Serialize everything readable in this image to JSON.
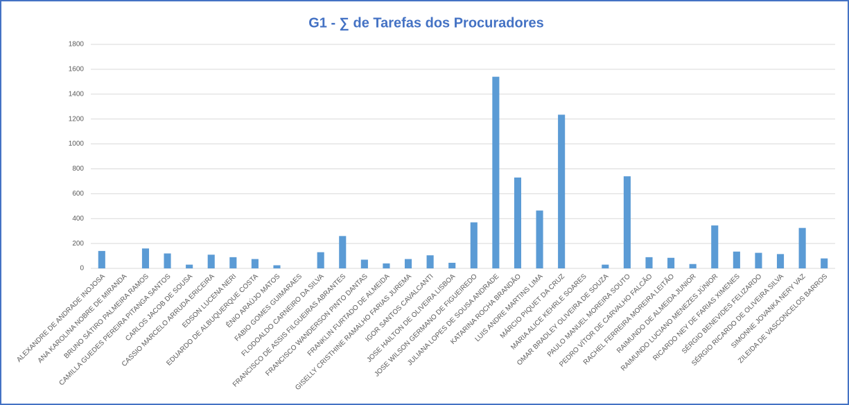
{
  "chart_data": {
    "type": "bar",
    "title": "G1 - ∑ de Tarefas dos Procuradores",
    "categories": [
      "ALEXANDRE DE ANDRADE INOJOSA",
      "ANA KAROLINA NOBRE DE MIRANDA",
      "BRUNO SÁTIRO PALMEIRA RAMOS",
      "CAMILLA GUEDES PEREIRA PITANGA SANTOS",
      "CARLOS JACOB DE SOUSA",
      "CASSIO MARCELO ARRUDA ERICEIRA",
      "EDSON LUCENA NERI",
      "EDUARDO DE ALBUQUERQUE COSTA",
      "ÊNIO ARAÚJO MATOS",
      "FABIO GOMES GUIMARAES",
      "FLODOALDO CARNEIRO DA SILVA",
      "FRANCISCO DE ASSIS FILGUEIRAS ABRANTES",
      "FRANCISCO WANDERSON PINTO DANTAS",
      "FRANKLIN FURTADO DE ALMEIDA",
      "GISELLY CRISTHINE RAMALHO FARIAS JUREMA",
      "IGOR SANTOS CAVALCANTI",
      "JOSE HAILTON DE OLIVEIRA LISBOA",
      "JOSE WILSON GERMANO DE FIGUEIREDO",
      "JULIANA LOPES DE SOUSA ANDRADE",
      "KATARINA ROCHA BRANDÃO",
      "LUIS ANDRE MARTINS LIMA",
      "MÁRCIO PIQUET DA CRUZ",
      "MARIA ALICE KEHRLE SOARES",
      "OMAR BRADLEY OLIVEIRA DE SOUZA",
      "PAULO MANUEL MOREIRA SOUTO",
      "PEDRO VÍTOR DE CARVALHO FALCÃO",
      "RACHEL FERREIRA MOREIRA LEITÃO",
      "RAIMUNDO DE ALMEIDA JUNIOR",
      "RAIMUNDO LUCIANO MENEZES JÚNIOR",
      "RICARDO NEY DE FARIAS XIMENES",
      "SÉRGIO BENEVIDES FELIZARDO",
      "SÉRGIO RICARDO DE OLIVEIRA SILVA",
      "SIMONNE JOVANKA NERY VAZ",
      "ZILEIDA DE VASCONCELOS BARROS"
    ],
    "values": [
      140,
      0,
      160,
      120,
      30,
      110,
      90,
      75,
      25,
      0,
      130,
      260,
      70,
      40,
      75,
      105,
      45,
      370,
      1540,
      730,
      465,
      1235,
      0,
      30,
      740,
      90,
      85,
      35,
      345,
      135,
      125,
      115,
      325,
      80
    ],
    "color": "#5b9bd5",
    "ylim": [
      0,
      1800
    ],
    "yticks": [
      0,
      200,
      400,
      600,
      800,
      1000,
      1200,
      1400,
      1600,
      1800
    ],
    "grid": true
  }
}
